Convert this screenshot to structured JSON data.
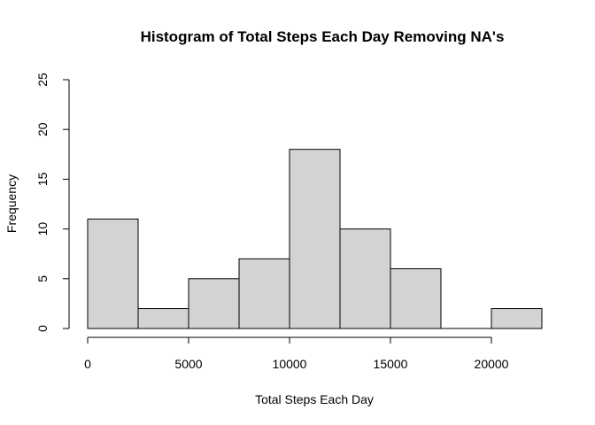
{
  "chart_data": {
    "type": "bar",
    "title": "Histogram of Total Steps Each Day Removing NA's",
    "xlabel": "Total Steps Each Day",
    "ylabel": "Frequency",
    "bins": [
      {
        "start": 0,
        "end": 2500,
        "count": 11
      },
      {
        "start": 2500,
        "end": 5000,
        "count": 2
      },
      {
        "start": 5000,
        "end": 7500,
        "count": 5
      },
      {
        "start": 7500,
        "end": 10000,
        "count": 7
      },
      {
        "start": 10000,
        "end": 12500,
        "count": 18
      },
      {
        "start": 12500,
        "end": 15000,
        "count": 10
      },
      {
        "start": 15000,
        "end": 17500,
        "count": 6
      },
      {
        "start": 17500,
        "end": 20000,
        "count": 0
      },
      {
        "start": 20000,
        "end": 22500,
        "count": 2
      }
    ],
    "xticks": [
      0,
      5000,
      10000,
      15000,
      20000
    ],
    "yticks": [
      0,
      5,
      10,
      15,
      20,
      25
    ],
    "xlim": [
      0,
      22500
    ],
    "ylim": [
      0,
      25
    ],
    "bar_color": "#d3d3d3",
    "grid": false
  }
}
